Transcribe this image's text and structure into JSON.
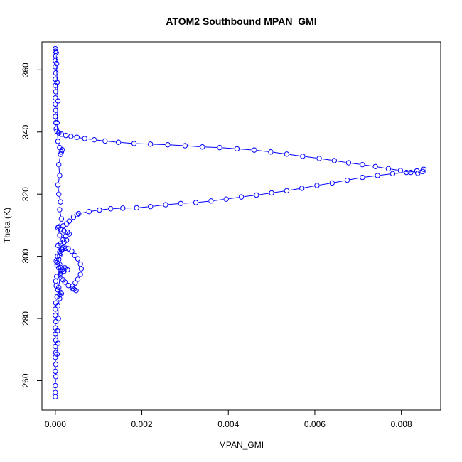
{
  "chart_data": {
    "type": "line",
    "title": "ATOM2 Southbound MPAN_GMI",
    "xlabel": "MPAN_GMI",
    "ylabel": "Theta (K)",
    "xlim": [
      -0.00031,
      0.00891
    ],
    "ylim": [
      250.5,
      369.0
    ],
    "xticks": [
      {
        "value": 0.0,
        "label": "0.000"
      },
      {
        "value": 0.002,
        "label": "0.002"
      },
      {
        "value": 0.004,
        "label": "0.004"
      },
      {
        "value": 0.006,
        "label": "0.006"
      },
      {
        "value": 0.008,
        "label": "0.008"
      }
    ],
    "yticks": [
      {
        "value": 260,
        "label": "260"
      },
      {
        "value": 280,
        "label": "280"
      },
      {
        "value": 300,
        "label": "300"
      },
      {
        "value": 320,
        "label": "320"
      },
      {
        "value": 340,
        "label": "340"
      },
      {
        "value": 360,
        "label": "360"
      }
    ],
    "grid": false,
    "legend": "none",
    "series": [
      {
        "color": "#0000ff",
        "marker": "open-circle",
        "points": [
          [
            0.0,
            254.8
          ],
          [
            0.0,
            256.2
          ],
          [
            0.0,
            258.4
          ],
          [
            1e-05,
            261.3
          ],
          [
            0.0,
            263.0
          ],
          [
            1e-05,
            265.2
          ],
          [
            0.0,
            267.5
          ],
          [
            1e-05,
            269.0
          ],
          [
            0.0,
            271.0
          ],
          [
            1e-05,
            273.0
          ],
          [
            0.0,
            275.0
          ],
          [
            0.0,
            277.0
          ],
          [
            1e-05,
            279.0
          ],
          [
            0.0,
            281.0
          ],
          [
            0.0,
            283.0
          ],
          [
            1e-05,
            285.0
          ],
          [
            4e-05,
            287.0
          ],
          [
            0.0001,
            287.6
          ],
          [
            0.00012,
            288.4
          ],
          [
            6e-05,
            289.2
          ],
          [
            2e-05,
            290.5
          ],
          [
            1e-05,
            292.0
          ],
          [
            3e-05,
            293.5
          ],
          [
            0.00012,
            294.6
          ],
          [
            0.0002,
            295.2
          ],
          [
            0.00028,
            295.7
          ],
          [
            0.00012,
            296.4
          ],
          [
            4e-05,
            297.2
          ],
          [
            2e-05,
            298.5
          ],
          [
            5e-05,
            300.0
          ],
          [
            0.0001,
            301.4
          ],
          [
            0.00014,
            302.2
          ],
          [
            0.00018,
            302.7
          ],
          [
            0.00024,
            302.6
          ],
          [
            0.0003,
            302.4
          ],
          [
            0.00038,
            301.6
          ],
          [
            0.00045,
            300.3
          ],
          [
            0.00052,
            299.2
          ],
          [
            0.00058,
            297.5
          ],
          [
            0.0006,
            296.0
          ],
          [
            0.00058,
            294.2
          ],
          [
            0.00052,
            292.6
          ],
          [
            0.00046,
            291.4
          ],
          [
            0.0004,
            290.4
          ],
          [
            0.00043,
            289.4
          ],
          [
            0.00048,
            289.0
          ],
          [
            0.0004,
            289.7
          ],
          [
            0.0003,
            290.6
          ],
          [
            0.00022,
            291.7
          ],
          [
            0.00018,
            292.4
          ],
          [
            0.00012,
            294.0
          ],
          [
            8e-05,
            296.3
          ],
          [
            4e-05,
            298.0
          ],
          [
            0.0001,
            300.3
          ],
          [
            0.00016,
            302.2
          ],
          [
            0.00012,
            304.0
          ],
          [
            0.00018,
            305.4
          ],
          [
            0.00024,
            306.5
          ],
          [
            0.00032,
            307.2
          ],
          [
            0.00028,
            307.8
          ],
          [
            0.0002,
            308.2
          ],
          [
            0.00012,
            308.6
          ],
          [
            6e-05,
            309.2
          ],
          [
            0.00018,
            309.8
          ],
          [
            0.00026,
            310.4
          ],
          [
            0.00032,
            311.3
          ],
          [
            0.00042,
            312.6
          ],
          [
            0.0005,
            313.4
          ],
          [
            0.00054,
            313.7
          ],
          [
            0.00078,
            314.4
          ],
          [
            0.00102,
            314.9
          ],
          [
            0.00128,
            315.3
          ],
          [
            0.00156,
            315.5
          ],
          [
            0.00188,
            315.6
          ],
          [
            0.0022,
            316.0
          ],
          [
            0.00255,
            316.6
          ],
          [
            0.0029,
            317.0
          ],
          [
            0.00325,
            317.3
          ],
          [
            0.0036,
            317.8
          ],
          [
            0.00395,
            318.4
          ],
          [
            0.0043,
            319.1
          ],
          [
            0.00465,
            319.7
          ],
          [
            0.005,
            320.4
          ],
          [
            0.00535,
            321.1
          ],
          [
            0.0057,
            321.9
          ],
          [
            0.00605,
            322.8
          ],
          [
            0.0064,
            323.6
          ],
          [
            0.00675,
            324.5
          ],
          [
            0.0071,
            325.4
          ],
          [
            0.00745,
            326.0
          ],
          [
            0.0078,
            326.6
          ],
          [
            0.00812,
            327.0
          ],
          [
            0.00836,
            327.5
          ],
          [
            0.00852,
            328.0
          ],
          [
            0.0085,
            327.3
          ],
          [
            0.00838,
            326.7
          ],
          [
            0.00822,
            327.0
          ],
          [
            0.00798,
            327.6
          ],
          [
            0.0077,
            328.2
          ],
          [
            0.0074,
            328.9
          ],
          [
            0.0071,
            329.5
          ],
          [
            0.00678,
            330.1
          ],
          [
            0.00645,
            330.8
          ],
          [
            0.0061,
            331.5
          ],
          [
            0.00572,
            332.2
          ],
          [
            0.00535,
            332.9
          ],
          [
            0.00498,
            333.6
          ],
          [
            0.0046,
            334.2
          ],
          [
            0.0042,
            334.6
          ],
          [
            0.0038,
            335.0
          ],
          [
            0.0034,
            335.2
          ],
          [
            0.003,
            335.6
          ],
          [
            0.0026,
            335.9
          ],
          [
            0.0022,
            336.1
          ],
          [
            0.00182,
            336.3
          ],
          [
            0.00146,
            336.7
          ],
          [
            0.00115,
            337.1
          ],
          [
            0.0009,
            337.5
          ],
          [
            0.00068,
            337.9
          ],
          [
            0.0005,
            338.3
          ],
          [
            0.00036,
            338.6
          ],
          [
            0.00024,
            338.9
          ],
          [
            0.00014,
            339.3
          ],
          [
            8e-05,
            339.7
          ],
          [
            4e-05,
            340.2
          ],
          [
            2e-05,
            341.0
          ],
          [
            1e-05,
            343.0
          ],
          [
            0.0,
            345.0
          ],
          [
            1e-05,
            347.0
          ],
          [
            0.0,
            349.0
          ],
          [
            0.0,
            351.0
          ],
          [
            1e-05,
            353.0
          ],
          [
            0.0,
            355.0
          ],
          [
            0.0,
            357.0
          ],
          [
            1e-05,
            359.0
          ],
          [
            0.0,
            361.0
          ],
          [
            0.0,
            363.0
          ],
          [
            1e-05,
            364.5
          ],
          [
            0.0,
            366.0
          ],
          [
            0.0,
            366.8
          ]
        ]
      },
      {
        "color": "#0000ff",
        "marker": "open-circle",
        "points": [
          [
            4e-05,
            268.5
          ],
          [
            6e-05,
            272.0
          ],
          [
            5e-05,
            276.0
          ],
          [
            7e-05,
            280.0
          ],
          [
            6e-05,
            284.0
          ],
          [
            0.0001,
            286.4
          ],
          [
            0.00014,
            288.0
          ],
          [
            8e-05,
            290.0
          ],
          [
            0.00012,
            295.4
          ],
          [
            0.00016,
            295.8
          ],
          [
            0.00022,
            296.3
          ],
          [
            8e-05,
            299.0
          ],
          [
            0.00012,
            301.0
          ],
          [
            6e-05,
            303.5
          ],
          [
            0.0002,
            304.6
          ],
          [
            0.00026,
            305.2
          ],
          [
            0.0001,
            306.8
          ],
          [
            8e-05,
            309.5
          ],
          [
            0.00014,
            312.0
          ],
          [
            0.0001,
            315.0
          ],
          [
            0.00012,
            317.5
          ],
          [
            8e-05,
            320.0
          ],
          [
            6e-05,
            323.0
          ],
          [
            0.0001,
            326.0
          ],
          [
            8e-05,
            329.5
          ],
          [
            0.00012,
            332.8
          ],
          [
            0.00014,
            333.6
          ],
          [
            0.00016,
            334.3
          ],
          [
            0.0001,
            335.0
          ],
          [
            6e-05,
            337.0
          ],
          [
            4e-05,
            343.0
          ],
          [
            6e-05,
            350.0
          ],
          [
            4e-05,
            356.0
          ],
          [
            3e-05,
            362.0
          ],
          [
            2e-05,
            365.5
          ]
        ]
      }
    ]
  }
}
